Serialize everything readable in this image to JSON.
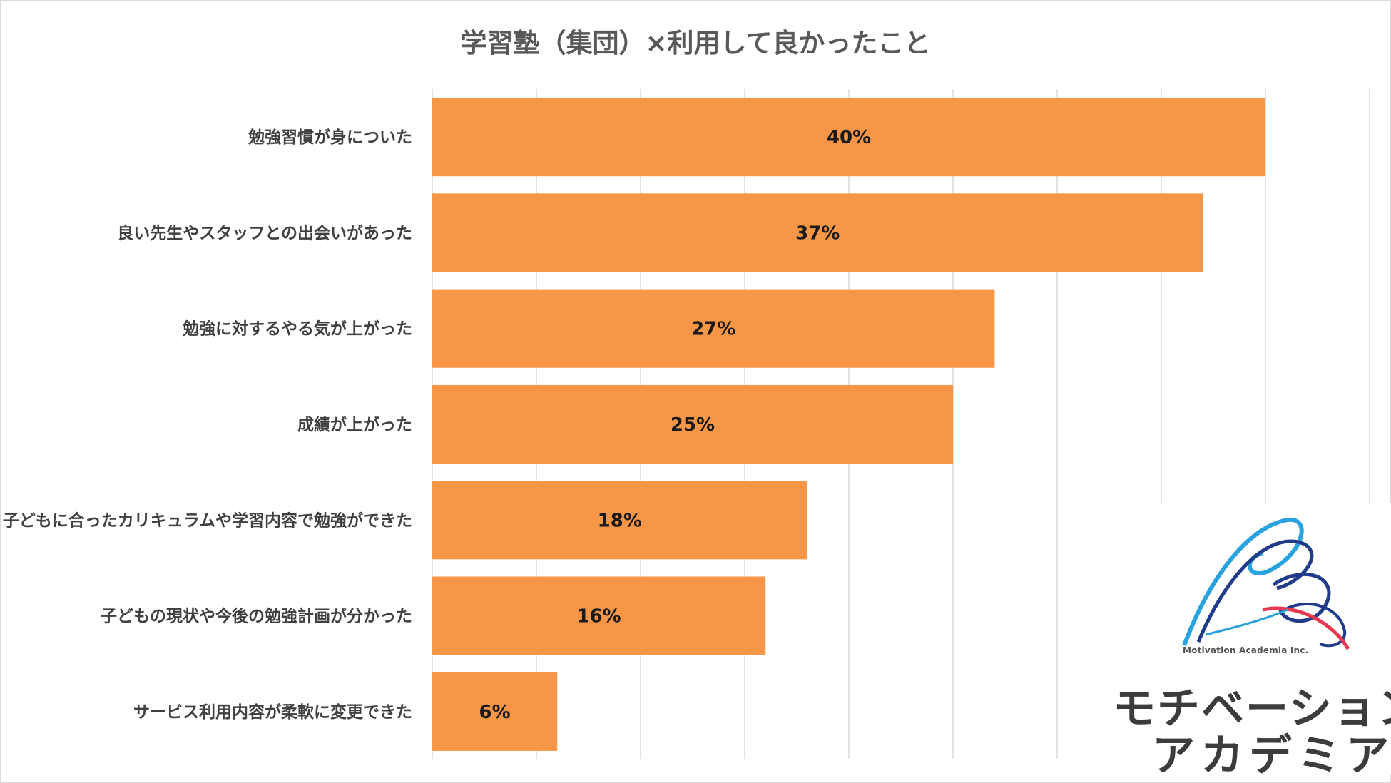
{
  "chart_data": {
    "type": "bar",
    "orientation": "horizontal",
    "title": "学習塾（集団）×利用して良かったこと",
    "categories": [
      "勉強習慣が身についた",
      "良い先生やスタッフとの出会いがあった",
      "勉強に対するやる気が上がった",
      "成績が上がった",
      "子どもに合ったカリキュラムや学習内容で勉強ができた",
      "子どもの現状や今後の勉強計画が分かった",
      "サービス利用内容が柔軟に変更できた"
    ],
    "values": [
      40,
      37,
      27,
      25,
      18,
      16,
      6
    ],
    "value_labels": [
      "40%",
      "37%",
      "27%",
      "25%",
      "18%",
      "16%",
      "6%"
    ],
    "unit": "%",
    "xlim": [
      0,
      45
    ],
    "grid": "vertical",
    "bar_color": "#F79646"
  },
  "logo": {
    "en": "Motivation Academia Inc.",
    "jp_line1": "モチベーション",
    "jp_line2": "アカデミア",
    "colors": [
      "#1f3b8a",
      "#29a3e0",
      "#e8384f"
    ]
  }
}
